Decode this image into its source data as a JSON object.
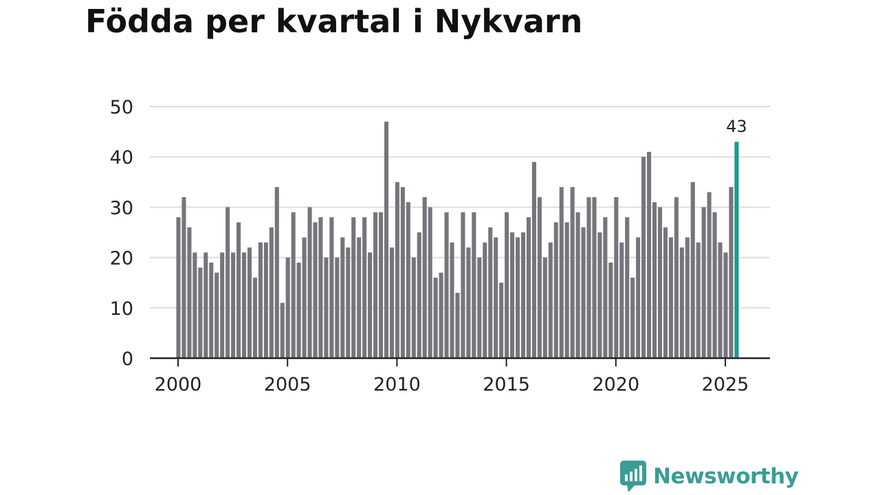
{
  "title": "Födda per kvartal i Nykvarn",
  "brand": {
    "name": "Newsworthy",
    "icon": "chart-bubble-icon"
  },
  "colors": {
    "bar": "#77757c",
    "highlight": "#179b8e",
    "grid": "#dddddd",
    "axis": "#222222",
    "brand": "#3a9d95"
  },
  "chart_data": {
    "type": "bar",
    "x_unit": "quarter",
    "x_start": "2000 Q1",
    "values": [
      28,
      32,
      26,
      21,
      18,
      21,
      19,
      17,
      21,
      30,
      21,
      27,
      21,
      22,
      16,
      23,
      23,
      26,
      34,
      11,
      20,
      29,
      19,
      24,
      30,
      27,
      28,
      20,
      28,
      20,
      24,
      22,
      28,
      24,
      28,
      21,
      29,
      29,
      47,
      22,
      35,
      34,
      31,
      20,
      25,
      32,
      30,
      16,
      17,
      29,
      23,
      13,
      29,
      22,
      29,
      20,
      23,
      26,
      24,
      15,
      29,
      25,
      24,
      25,
      28,
      39,
      32,
      20,
      23,
      27,
      34,
      27,
      34,
      29,
      26,
      32,
      32,
      25,
      28,
      19,
      32,
      23,
      28,
      16,
      24,
      40,
      41,
      31,
      30,
      26,
      24,
      32,
      22,
      24,
      35,
      23,
      30,
      33,
      29,
      23,
      21,
      34,
      43
    ],
    "highlight_last": true,
    "data_labels": [
      {
        "index": 102,
        "text": "43"
      }
    ],
    "x_ticks": [
      "2000",
      "2005",
      "2010",
      "2015",
      "2020",
      "2025"
    ],
    "y_ticks": [
      "0",
      "10",
      "20",
      "30",
      "40",
      "50"
    ],
    "ylim": [
      0,
      50
    ],
    "grid": true,
    "legend": "none"
  }
}
